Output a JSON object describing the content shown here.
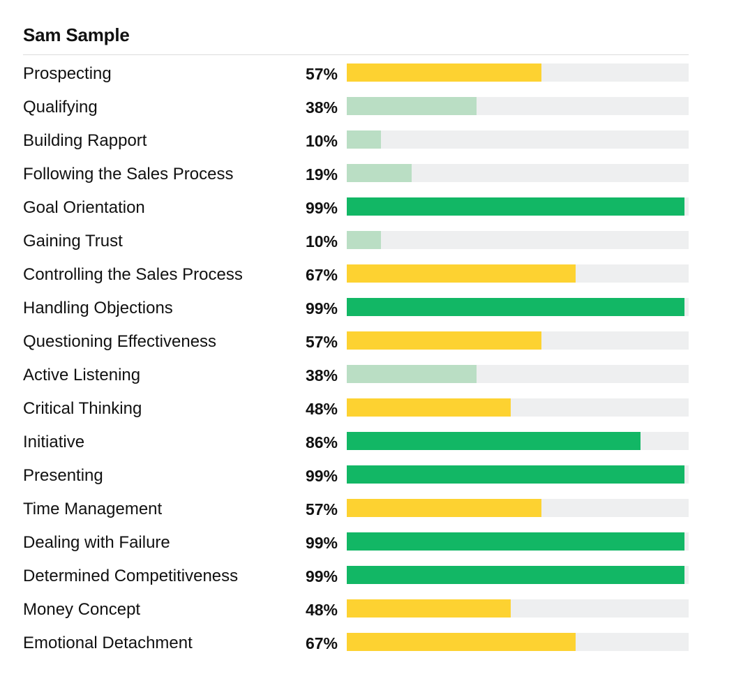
{
  "title": "Sam Sample",
  "colors": {
    "high": "#12b765",
    "medium": "#fdd231",
    "low": "#badec4",
    "track": "#eeeff0"
  },
  "chart_data": {
    "type": "bar",
    "orientation": "horizontal",
    "title": "Sam Sample",
    "xlim": [
      0,
      100
    ],
    "grid": false,
    "categories": [
      "Prospecting",
      "Qualifying",
      "Building Rapport",
      "Following the Sales Process",
      "Goal Orientation",
      "Gaining Trust",
      "Controlling the Sales Process",
      "Handling Objections",
      "Questioning Effectiveness",
      "Active Listening",
      "Critical Thinking",
      "Initiative",
      "Presenting",
      "Time Management",
      "Dealing with Failure",
      "Determined Competitiveness",
      "Money Concept",
      "Emotional Detachment"
    ],
    "values": [
      57,
      38,
      10,
      19,
      99,
      10,
      67,
      99,
      57,
      38,
      48,
      86,
      99,
      57,
      99,
      99,
      48,
      67
    ],
    "labels": [
      "57%",
      "38%",
      "10%",
      "19%",
      "99%",
      "10%",
      "67%",
      "99%",
      "57%",
      "38%",
      "48%",
      "86%",
      "99%",
      "57%",
      "99%",
      "99%",
      "48%",
      "67%"
    ],
    "bar_colors": [
      "#fdd231",
      "#badec4",
      "#badec4",
      "#badec4",
      "#12b765",
      "#badec4",
      "#fdd231",
      "#12b765",
      "#fdd231",
      "#badec4",
      "#fdd231",
      "#12b765",
      "#12b765",
      "#fdd231",
      "#12b765",
      "#12b765",
      "#fdd231",
      "#fdd231"
    ]
  }
}
